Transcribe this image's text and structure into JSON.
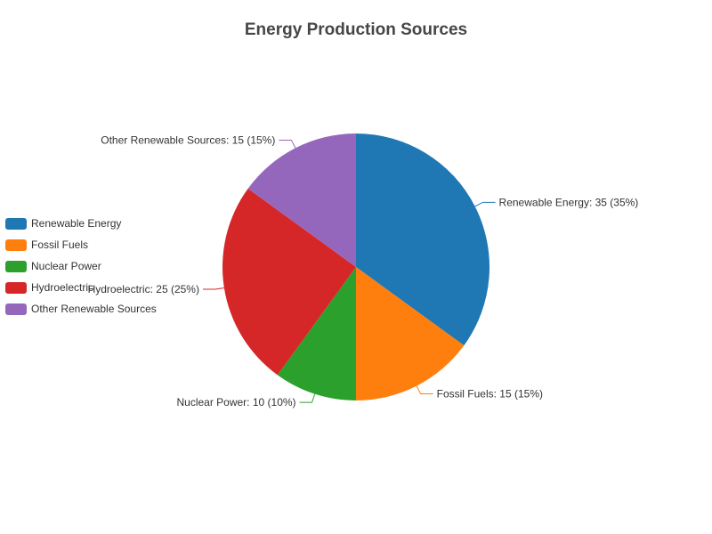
{
  "chart_data": {
    "type": "pie",
    "title": "Energy Production Sources",
    "legend_position": "left",
    "categories": [
      "Renewable Energy",
      "Fossil Fuels",
      "Nuclear Power",
      "Hydroelectric",
      "Other Renewable Sources"
    ],
    "values": [
      35,
      15,
      10,
      25,
      15
    ],
    "percentages": [
      35,
      15,
      10,
      25,
      15
    ],
    "colors": [
      "#1f77b4",
      "#ff7f0e",
      "#2ca02c",
      "#d62728",
      "#9467bd"
    ],
    "slice_labels": [
      "Renewable Energy: 35 (35%)",
      "Fossil Fuels: 15 (15%)",
      "Nuclear Power: 10 (10%)",
      "Hydroelectric: 25 (25%)",
      "Other Renewable Sources: 15 (15%)"
    ]
  }
}
